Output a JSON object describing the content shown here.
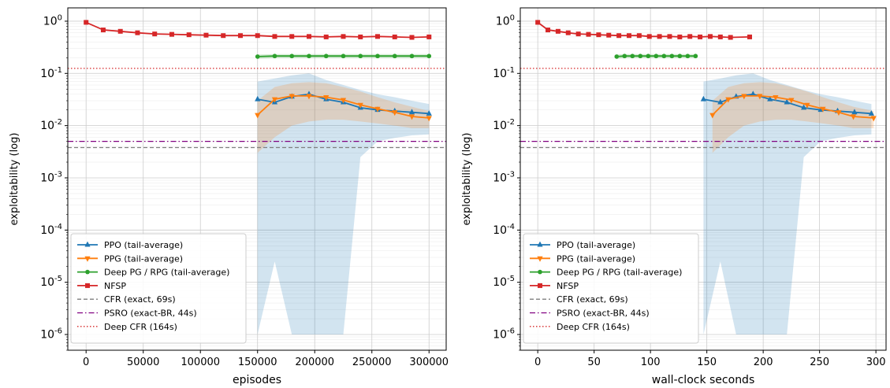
{
  "chart_data": [
    {
      "type": "line",
      "xlabel": "episodes",
      "ylabel": "exploitability (log)",
      "yscale": "log",
      "xlim": [
        -16000,
        315000
      ],
      "ylim": [
        5e-07,
        1.8
      ],
      "xticks": [
        0,
        50000,
        100000,
        150000,
        200000,
        250000,
        300000
      ],
      "grid": true,
      "legend_position": "lower-left",
      "series": [
        {
          "name": "PPO (tail-average)",
          "color": "#1f77b4",
          "marker": "triangle-up",
          "x": [
            150000,
            165000,
            180000,
            195000,
            210000,
            225000,
            240000,
            255000,
            270000,
            285000,
            300000
          ],
          "y": [
            0.032,
            0.028,
            0.036,
            0.04,
            0.032,
            0.028,
            0.022,
            0.02,
            0.019,
            0.018,
            0.017
          ],
          "band_low": [
            1e-06,
            2.5e-05,
            1e-06,
            1e-06,
            1e-06,
            1e-06,
            0.0025,
            0.005,
            0.0058,
            0.0065,
            0.0068
          ],
          "band_high": [
            0.07,
            0.08,
            0.092,
            0.1,
            0.075,
            0.06,
            0.048,
            0.04,
            0.035,
            0.03,
            0.026
          ]
        },
        {
          "name": "PPG (tail-average)",
          "color": "#ff7f0e",
          "marker": "triangle-down",
          "x": [
            150000,
            165000,
            180000,
            195000,
            210000,
            225000,
            240000,
            255000,
            270000,
            285000,
            300000
          ],
          "y": [
            0.016,
            0.032,
            0.037,
            0.037,
            0.035,
            0.031,
            0.025,
            0.021,
            0.018,
            0.015,
            0.014
          ],
          "band_low": [
            0.003,
            0.006,
            0.01,
            0.012,
            0.013,
            0.013,
            0.012,
            0.011,
            0.01,
            0.009,
            0.009
          ],
          "band_high": [
            0.03,
            0.055,
            0.065,
            0.068,
            0.065,
            0.055,
            0.045,
            0.035,
            0.028,
            0.023,
            0.019
          ]
        },
        {
          "name": "Deep PG / RPG (tail-average)",
          "color": "#2ca02c",
          "marker": "circle",
          "x": [
            150000,
            165000,
            180000,
            195000,
            210000,
            225000,
            240000,
            255000,
            270000,
            285000,
            300000
          ],
          "y": [
            0.21,
            0.215,
            0.215,
            0.215,
            0.215,
            0.215,
            0.215,
            0.215,
            0.215,
            0.215,
            0.215
          ],
          "band_low": [
            0.19,
            0.195,
            0.195,
            0.195,
            0.195,
            0.195,
            0.195,
            0.195,
            0.195,
            0.195,
            0.195
          ],
          "band_high": [
            0.23,
            0.235,
            0.235,
            0.235,
            0.235,
            0.235,
            0.235,
            0.235,
            0.235,
            0.235,
            0.235
          ]
        },
        {
          "name": "NFSP",
          "color": "#d62728",
          "marker": "square",
          "x": [
            0,
            15000,
            30000,
            45000,
            60000,
            75000,
            90000,
            105000,
            120000,
            135000,
            150000,
            165000,
            180000,
            195000,
            210000,
            225000,
            240000,
            255000,
            270000,
            285000,
            300000
          ],
          "y": [
            0.95,
            0.68,
            0.64,
            0.6,
            0.57,
            0.56,
            0.55,
            0.54,
            0.53,
            0.53,
            0.53,
            0.51,
            0.51,
            0.51,
            0.5,
            0.51,
            0.5,
            0.51,
            0.5,
            0.49,
            0.5
          ]
        }
      ],
      "reference_lines": [
        {
          "name": "CFR (exact, 69s)",
          "color": "#7f7f7f",
          "style": "dashed",
          "y": 0.0038
        },
        {
          "name": "PSRO (exact-BR, 44s)",
          "color": "#800080",
          "style": "dashdot",
          "y": 0.005
        },
        {
          "name": "Deep CFR (164s)",
          "color": "#d62728",
          "style": "dotted",
          "y": 0.125
        }
      ]
    },
    {
      "type": "line",
      "xlabel": "wall-clock seconds",
      "ylabel": "exploitability (log)",
      "yscale": "log",
      "xlim": [
        -15.5,
        309
      ],
      "ylim": [
        5e-07,
        1.8
      ],
      "xticks": [
        0,
        50,
        100,
        150,
        200,
        250,
        300
      ],
      "grid": true,
      "legend_position": "lower-left",
      "series": [
        {
          "name": "PPO (tail-average)",
          "color": "#1f77b4",
          "marker": "triangle-up",
          "x": [
            147,
            162,
            176,
            191,
            206,
            221,
            236,
            251,
            266,
            281,
            296
          ],
          "y": [
            0.032,
            0.028,
            0.036,
            0.04,
            0.032,
            0.028,
            0.022,
            0.02,
            0.019,
            0.018,
            0.017
          ],
          "band_low": [
            1e-06,
            2.5e-05,
            1e-06,
            1e-06,
            1e-06,
            1e-06,
            0.0025,
            0.005,
            0.0058,
            0.0065,
            0.0068
          ],
          "band_high": [
            0.07,
            0.08,
            0.092,
            0.1,
            0.075,
            0.06,
            0.048,
            0.04,
            0.035,
            0.03,
            0.026
          ]
        },
        {
          "name": "PPG (tail-average)",
          "color": "#ff7f0e",
          "marker": "triangle-down",
          "x": [
            155,
            169,
            183,
            197,
            211,
            225,
            239,
            253,
            267,
            280,
            298
          ],
          "y": [
            0.016,
            0.032,
            0.037,
            0.037,
            0.035,
            0.031,
            0.025,
            0.021,
            0.018,
            0.015,
            0.014
          ],
          "band_low": [
            0.003,
            0.006,
            0.01,
            0.012,
            0.013,
            0.013,
            0.012,
            0.011,
            0.01,
            0.009,
            0.009
          ],
          "band_high": [
            0.03,
            0.055,
            0.065,
            0.068,
            0.065,
            0.055,
            0.045,
            0.035,
            0.028,
            0.023,
            0.019
          ]
        },
        {
          "name": "Deep PG / RPG (tail-average)",
          "color": "#2ca02c",
          "marker": "circle",
          "x": [
            70,
            77,
            84,
            91,
            98,
            105,
            112,
            119,
            126,
            133,
            140
          ],
          "y": [
            0.21,
            0.215,
            0.215,
            0.215,
            0.215,
            0.215,
            0.215,
            0.215,
            0.215,
            0.215,
            0.215
          ],
          "band_low": [
            0.19,
            0.195,
            0.195,
            0.195,
            0.195,
            0.195,
            0.195,
            0.195,
            0.195,
            0.195,
            0.195
          ],
          "band_high": [
            0.23,
            0.235,
            0.235,
            0.235,
            0.235,
            0.235,
            0.235,
            0.235,
            0.235,
            0.235,
            0.235
          ]
        },
        {
          "name": "NFSP",
          "color": "#d62728",
          "marker": "square",
          "x": [
            0,
            9,
            18,
            27,
            36,
            45,
            54,
            63,
            72,
            81,
            90,
            99,
            108,
            117,
            126,
            135,
            144,
            153,
            162,
            171,
            188
          ],
          "y": [
            0.95,
            0.68,
            0.64,
            0.6,
            0.57,
            0.56,
            0.55,
            0.54,
            0.53,
            0.53,
            0.53,
            0.51,
            0.51,
            0.51,
            0.5,
            0.51,
            0.5,
            0.51,
            0.5,
            0.49,
            0.5
          ]
        }
      ],
      "reference_lines": [
        {
          "name": "CFR (exact, 69s)",
          "color": "#7f7f7f",
          "style": "dashed",
          "y": 0.0038
        },
        {
          "name": "PSRO (exact-BR, 44s)",
          "color": "#800080",
          "style": "dashdot",
          "y": 0.005
        },
        {
          "name": "Deep CFR (164s)",
          "color": "#d62728",
          "style": "dotted",
          "y": 0.125
        }
      ]
    }
  ]
}
